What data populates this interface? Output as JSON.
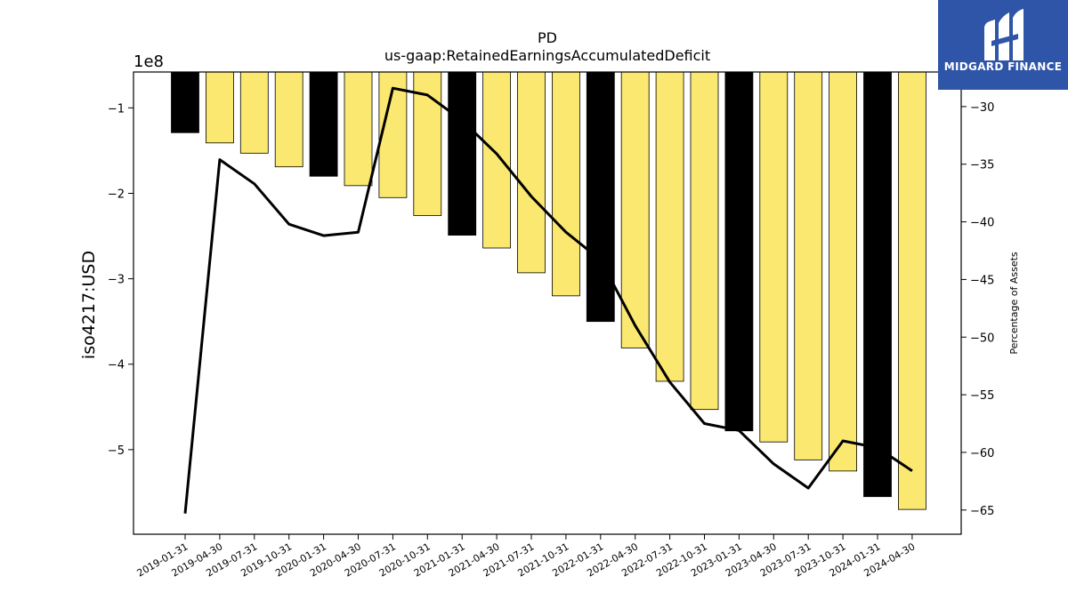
{
  "logo": {
    "text": "MIDGARD FINANCE",
    "background": "#2f55a8"
  },
  "chart_data": {
    "type": "bar",
    "title": "PD",
    "subtitle": "us-gaap:RetainedEarningsAccumulatedDeficit",
    "ylabel": "iso4217:USD",
    "y2label": "Percentage of Assets",
    "offset_label": "1e8",
    "categories": [
      "2019-01-31",
      "2019-04-30",
      "2019-07-31",
      "2019-10-31",
      "2020-01-31",
      "2020-04-30",
      "2020-07-31",
      "2020-10-31",
      "2021-01-31",
      "2021-04-30",
      "2021-07-31",
      "2021-10-31",
      "2022-01-31",
      "2022-04-30",
      "2022-07-31",
      "2022-10-31",
      "2023-01-31",
      "2023-04-30",
      "2023-07-31",
      "2023-10-31",
      "2024-01-31",
      "2024-04-30"
    ],
    "series": [
      {
        "values": [
          -129000000.0,
          -141000000.0,
          -153000000.0,
          -169000000.0,
          -180000000.0,
          -191000000.0,
          -205000000.0,
          -226000000.0,
          -249000000.0,
          -264000000.0,
          -293000000.0,
          -320000000.0,
          -350000000.0,
          -381000000.0,
          -420000000.0,
          -453000000.0,
          -478000000.0,
          -491000000.0,
          -512000000.0,
          -525000000.0,
          -555000000.0,
          -570000000.0
        ],
        "highlight": [
          true,
          false,
          false,
          false,
          true,
          false,
          false,
          false,
          true,
          false,
          false,
          false,
          true,
          false,
          false,
          false,
          true,
          false,
          false,
          false,
          true,
          false
        ],
        "color": "#fbe870",
        "highlight_color": "#000000",
        "axis": "left"
      },
      {
        "type": "line",
        "values": [
          -65.3,
          -34.6,
          -36.7,
          -40.2,
          -41.2,
          -40.9,
          -28.4,
          -29.0,
          -31.2,
          -34.1,
          -37.8,
          -40.9,
          -43.3,
          -49.0,
          -53.9,
          -57.5,
          -58.1,
          -61.0,
          -63.1,
          -59.0,
          -59.6,
          -61.6
        ],
        "color": "#000000",
        "axis": "right"
      }
    ],
    "ylim": [
      -599000000.0,
      -58000000.0
    ],
    "yticks": [
      -1,
      -2,
      -3,
      -4,
      -5
    ],
    "y2lim": [
      -67.1,
      -27.0
    ],
    "y2ticks": [
      -30,
      -35,
      -40,
      -45,
      -50,
      -55,
      -60,
      -65
    ],
    "grid": false
  }
}
